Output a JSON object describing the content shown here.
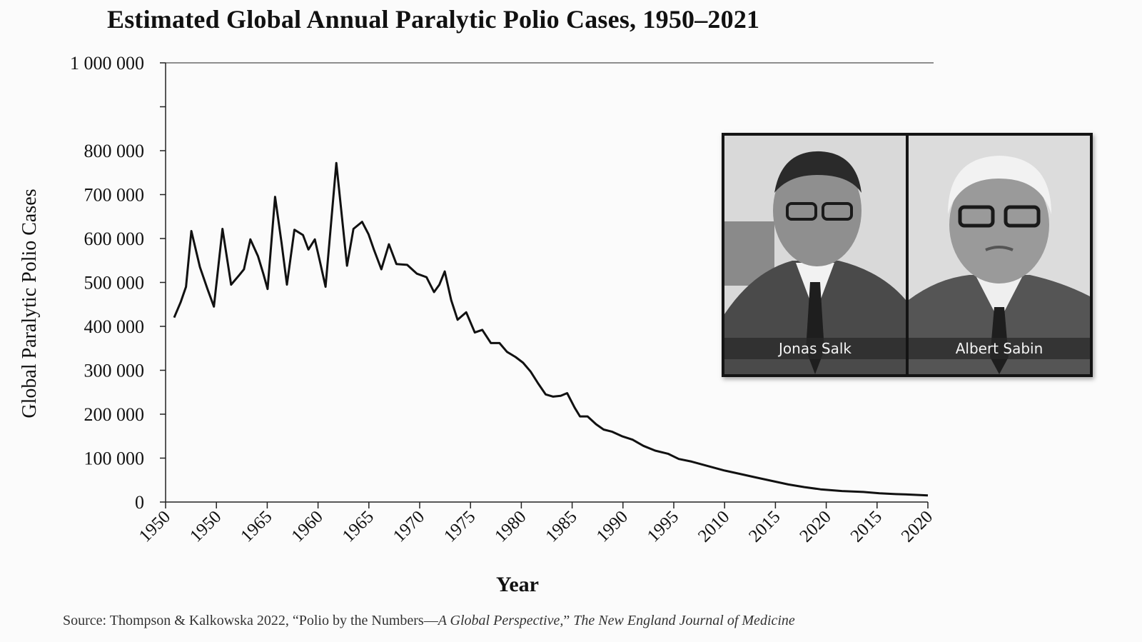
{
  "chart_data": {
    "type": "line",
    "title": "Estimated Global Annual Paralytic Polio Cases, 1950–2021",
    "xlabel": "Year",
    "ylabel": "Global Paralytic Polio Cases",
    "ylim": [
      0,
      1000000
    ],
    "yticks": [
      0,
      100000,
      200000,
      300000,
      400000,
      500000,
      600000,
      700000,
      800000,
      900000,
      1000000
    ],
    "ytick_labels": [
      "0",
      "100 000",
      "200 000",
      "300 000",
      "400 000",
      "500 000",
      "600 000",
      "700 000",
      "800 000",
      "",
      "1 000 000"
    ],
    "xlim": [
      1950,
      2021
    ],
    "xtick_labels": [
      "1950",
      "1950",
      "1965",
      "1960",
      "1965",
      "1970",
      "1975",
      "1980",
      "1985",
      "1990",
      "1995",
      "2010",
      "2015",
      "2020",
      "2015",
      "2020"
    ],
    "grid": false,
    "series": [
      {
        "values": [
          [
            1950.8,
            420000
          ],
          [
            1951.4,
            455000
          ],
          [
            1951.9,
            490000
          ],
          [
            1952.4,
            617000
          ],
          [
            1953.2,
            535000
          ],
          [
            1953.9,
            485000
          ],
          [
            1954.5,
            445000
          ],
          [
            1955.3,
            622000
          ],
          [
            1956.1,
            495000
          ],
          [
            1956.8,
            515000
          ],
          [
            1957.3,
            530000
          ],
          [
            1957.9,
            598000
          ],
          [
            1958.6,
            560000
          ],
          [
            1959.1,
            520000
          ],
          [
            1959.5,
            485000
          ],
          [
            1960.2,
            695000
          ],
          [
            1960.8,
            590000
          ],
          [
            1961.3,
            495000
          ],
          [
            1962.0,
            620000
          ],
          [
            1962.8,
            608000
          ],
          [
            1963.3,
            575000
          ],
          [
            1963.9,
            598000
          ],
          [
            1964.4,
            545000
          ],
          [
            1964.9,
            490000
          ],
          [
            1965.9,
            772000
          ],
          [
            1966.9,
            538000
          ],
          [
            1967.5,
            622000
          ],
          [
            1968.3,
            638000
          ],
          [
            1968.9,
            610000
          ],
          [
            1969.4,
            575000
          ],
          [
            1970.1,
            530000
          ],
          [
            1970.8,
            587000
          ],
          [
            1971.5,
            542000
          ],
          [
            1972.5,
            540000
          ],
          [
            1973.4,
            520000
          ],
          [
            1974.3,
            512000
          ],
          [
            1975.0,
            478000
          ],
          [
            1975.5,
            495000
          ],
          [
            1976.0,
            525000
          ],
          [
            1976.6,
            460000
          ],
          [
            1977.2,
            415000
          ],
          [
            1978.0,
            432000
          ],
          [
            1978.8,
            386000
          ],
          [
            1979.5,
            392000
          ],
          [
            1980.3,
            362000
          ],
          [
            1981.1,
            362000
          ],
          [
            1981.8,
            342000
          ],
          [
            1982.6,
            330000
          ],
          [
            1983.3,
            317000
          ],
          [
            1984.0,
            297000
          ],
          [
            1984.7,
            270000
          ],
          [
            1985.4,
            245000
          ],
          [
            1986.1,
            240000
          ],
          [
            1986.8,
            242000
          ],
          [
            1987.4,
            248000
          ],
          [
            1988.1,
            215000
          ],
          [
            1988.6,
            195000
          ],
          [
            1989.3,
            195000
          ],
          [
            1990.1,
            177000
          ],
          [
            1990.8,
            165000
          ],
          [
            1991.6,
            160000
          ],
          [
            1992.5,
            150000
          ],
          [
            1993.5,
            142000
          ],
          [
            1994.5,
            128000
          ],
          [
            1995.6,
            117000
          ],
          [
            1996.8,
            110000
          ],
          [
            1997.8,
            98000
          ],
          [
            1999.0,
            92000
          ],
          [
            2000.5,
            82000
          ],
          [
            2002.0,
            72000
          ],
          [
            2003.5,
            64000
          ],
          [
            2005.0,
            56000
          ],
          [
            2006.5,
            48000
          ],
          [
            2008.0,
            40000
          ],
          [
            2009.5,
            34000
          ],
          [
            2011.0,
            29000
          ],
          [
            2013.0,
            25000
          ],
          [
            2015.0,
            23000
          ],
          [
            2016.5,
            20000
          ],
          [
            2018.0,
            18000
          ],
          [
            2019.2,
            17000
          ],
          [
            2020.3,
            16000
          ],
          [
            2021.0,
            15000
          ]
        ]
      }
    ]
  },
  "source": {
    "prefix": "Source: Thompson & Kalkowska 2022, “Polio by the Numbers—",
    "article_italic": "A Global Perspective,",
    "close_quote": "” ",
    "journal_italic": "The New England Journal of Medicine"
  },
  "inset": {
    "photos": [
      {
        "caption": "Jonas Salk"
      },
      {
        "caption": "Albert Sabin"
      }
    ]
  }
}
